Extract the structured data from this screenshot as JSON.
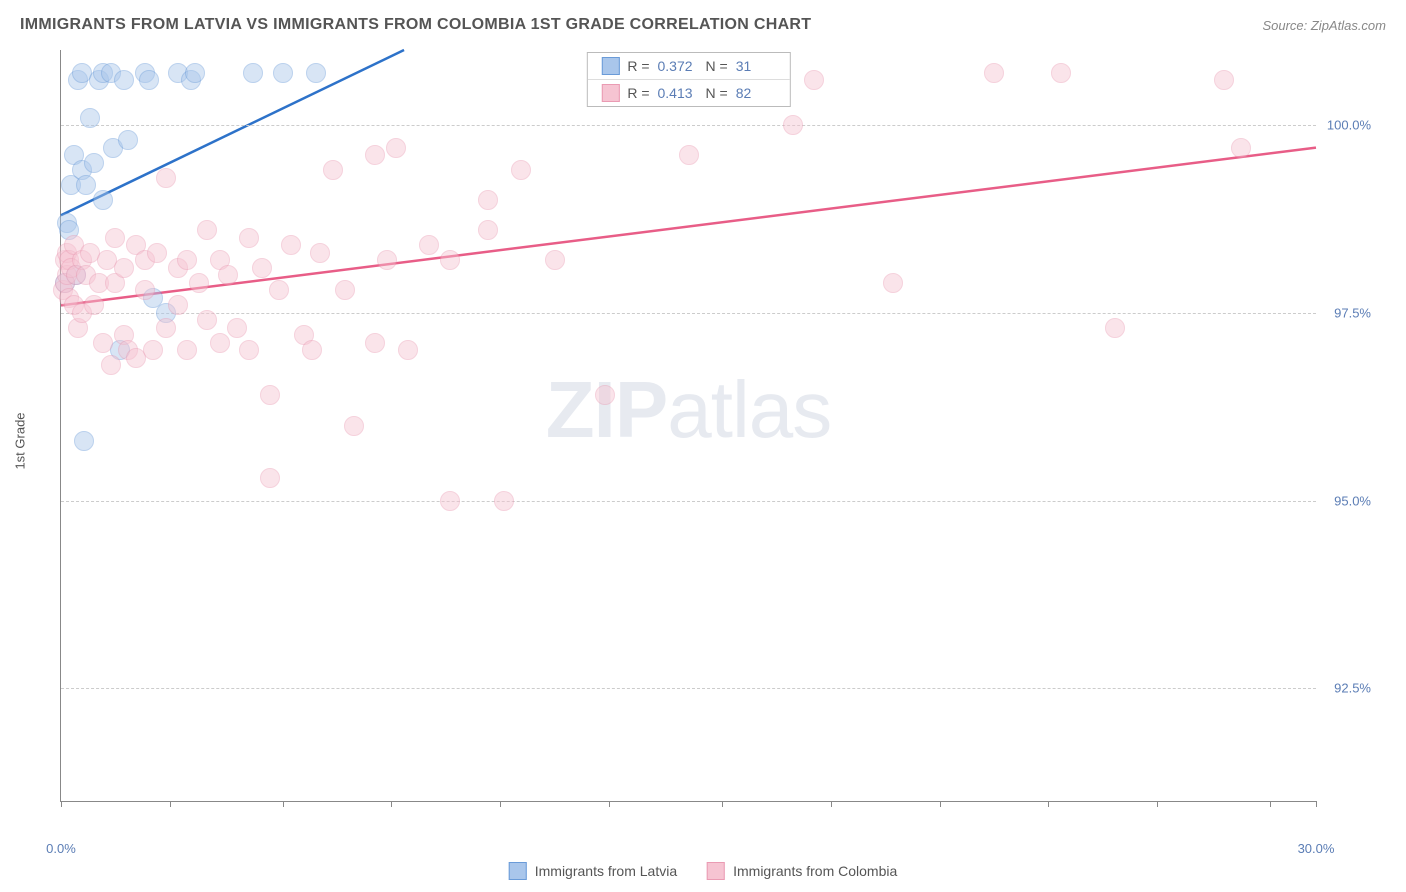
{
  "header": {
    "title": "IMMIGRANTS FROM LATVIA VS IMMIGRANTS FROM COLOMBIA 1ST GRADE CORRELATION CHART",
    "source_prefix": "Source: ",
    "source": "ZipAtlas.com"
  },
  "chart": {
    "type": "scatter",
    "ylabel": "1st Grade",
    "xlim": [
      0,
      30
    ],
    "ylim": [
      91,
      101
    ],
    "xtick_positions": [
      0,
      2.6,
      5.3,
      7.9,
      10.5,
      13.1,
      15.8,
      18.4,
      21.0,
      23.6,
      26.2,
      28.9,
      30
    ],
    "xtick_labels_shown": {
      "0": "0.0%",
      "30": "30.0%"
    },
    "ytick_positions": [
      92.5,
      95.0,
      97.5,
      100.0
    ],
    "ytick_labels": [
      "92.5%",
      "95.0%",
      "97.5%",
      "100.0%"
    ],
    "grid_color": "#cccccc",
    "axis_color": "#888888",
    "background_color": "#ffffff",
    "point_radius": 10,
    "point_opacity": 0.45,
    "line_width": 2.5,
    "watermark": "ZIPatlas",
    "series": [
      {
        "name": "Immigrants from Latvia",
        "color_fill": "#a9c6eb",
        "color_stroke": "#6a9bd8",
        "line_color": "#2d72c9",
        "R": "0.372",
        "N": "31",
        "trend": {
          "x1": 0,
          "y1": 98.8,
          "x2": 8.2,
          "y2": 101.0
        },
        "points": [
          [
            0.1,
            97.9
          ],
          [
            0.15,
            98.7
          ],
          [
            0.2,
            98.6
          ],
          [
            0.25,
            99.2
          ],
          [
            0.3,
            99.6
          ],
          [
            0.35,
            98.0
          ],
          [
            0.4,
            100.6
          ],
          [
            0.5,
            100.7
          ],
          [
            0.5,
            99.4
          ],
          [
            0.6,
            99.2
          ],
          [
            0.7,
            100.1
          ],
          [
            0.8,
            99.5
          ],
          [
            0.9,
            100.6
          ],
          [
            1.0,
            100.7
          ],
          [
            1.0,
            99.0
          ],
          [
            1.2,
            100.7
          ],
          [
            1.25,
            99.7
          ],
          [
            1.4,
            97.0
          ],
          [
            1.5,
            100.6
          ],
          [
            1.6,
            99.8
          ],
          [
            2.0,
            100.7
          ],
          [
            2.1,
            100.6
          ],
          [
            2.2,
            97.7
          ],
          [
            2.5,
            97.5
          ],
          [
            2.8,
            100.7
          ],
          [
            3.1,
            100.6
          ],
          [
            3.2,
            100.7
          ],
          [
            4.6,
            100.7
          ],
          [
            5.3,
            100.7
          ],
          [
            6.1,
            100.7
          ],
          [
            0.55,
            95.8
          ]
        ]
      },
      {
        "name": "Immigrants from Colombia",
        "color_fill": "#f6c4d2",
        "color_stroke": "#ea9bb3",
        "line_color": "#e85d87",
        "R": "0.413",
        "N": "82",
        "trend": {
          "x1": 0,
          "y1": 97.6,
          "x2": 30,
          "y2": 99.7
        },
        "points": [
          [
            0.05,
            97.8
          ],
          [
            0.1,
            98.2
          ],
          [
            0.1,
            97.9
          ],
          [
            0.15,
            98.0
          ],
          [
            0.15,
            98.3
          ],
          [
            0.2,
            98.2
          ],
          [
            0.2,
            97.7
          ],
          [
            0.25,
            98.1
          ],
          [
            0.3,
            98.4
          ],
          [
            0.3,
            97.6
          ],
          [
            0.35,
            98.0
          ],
          [
            0.4,
            97.3
          ],
          [
            0.5,
            98.2
          ],
          [
            0.5,
            97.5
          ],
          [
            0.6,
            98.0
          ],
          [
            0.7,
            98.3
          ],
          [
            0.8,
            97.6
          ],
          [
            0.9,
            97.9
          ],
          [
            1.0,
            97.1
          ],
          [
            1.1,
            98.2
          ],
          [
            1.2,
            96.8
          ],
          [
            1.3,
            97.9
          ],
          [
            1.3,
            98.5
          ],
          [
            1.5,
            97.2
          ],
          [
            1.5,
            98.1
          ],
          [
            1.6,
            97.0
          ],
          [
            1.8,
            98.4
          ],
          [
            1.8,
            96.9
          ],
          [
            2.0,
            97.8
          ],
          [
            2.0,
            98.2
          ],
          [
            2.2,
            97.0
          ],
          [
            2.3,
            98.3
          ],
          [
            2.5,
            97.3
          ],
          [
            2.5,
            99.3
          ],
          [
            2.8,
            98.1
          ],
          [
            2.8,
            97.6
          ],
          [
            3.0,
            97.0
          ],
          [
            3.0,
            98.2
          ],
          [
            3.3,
            97.9
          ],
          [
            3.5,
            97.4
          ],
          [
            3.5,
            98.6
          ],
          [
            3.8,
            97.1
          ],
          [
            3.8,
            98.2
          ],
          [
            4.0,
            98.0
          ],
          [
            4.2,
            97.3
          ],
          [
            4.5,
            98.5
          ],
          [
            4.5,
            97.0
          ],
          [
            4.8,
            98.1
          ],
          [
            5.0,
            96.4
          ],
          [
            5.2,
            97.8
          ],
          [
            5.5,
            98.4
          ],
          [
            5.8,
            97.2
          ],
          [
            6.0,
            97.0
          ],
          [
            6.2,
            98.3
          ],
          [
            6.5,
            99.4
          ],
          [
            6.8,
            97.8
          ],
          [
            7.0,
            96.0
          ],
          [
            7.5,
            99.6
          ],
          [
            7.5,
            97.1
          ],
          [
            7.8,
            98.2
          ],
          [
            8.0,
            99.7
          ],
          [
            8.3,
            97.0
          ],
          [
            8.8,
            98.4
          ],
          [
            9.3,
            95.0
          ],
          [
            9.3,
            98.2
          ],
          [
            10.2,
            99.0
          ],
          [
            10.2,
            98.6
          ],
          [
            10.6,
            95.0
          ],
          [
            11.0,
            99.4
          ],
          [
            11.8,
            98.2
          ],
          [
            13.0,
            96.4
          ],
          [
            13.6,
            100.7
          ],
          [
            15.0,
            99.6
          ],
          [
            17.5,
            100.0
          ],
          [
            18.0,
            100.6
          ],
          [
            19.9,
            97.9
          ],
          [
            22.3,
            100.7
          ],
          [
            23.9,
            100.7
          ],
          [
            25.2,
            97.3
          ],
          [
            27.8,
            100.6
          ],
          [
            28.2,
            99.7
          ],
          [
            5.0,
            95.3
          ]
        ]
      }
    ],
    "legend_top": {
      "R_label": "R  =",
      "N_label": "N  ="
    },
    "legend_bottom_labels": [
      "Immigrants from Latvia",
      "Immigrants from Colombia"
    ]
  }
}
